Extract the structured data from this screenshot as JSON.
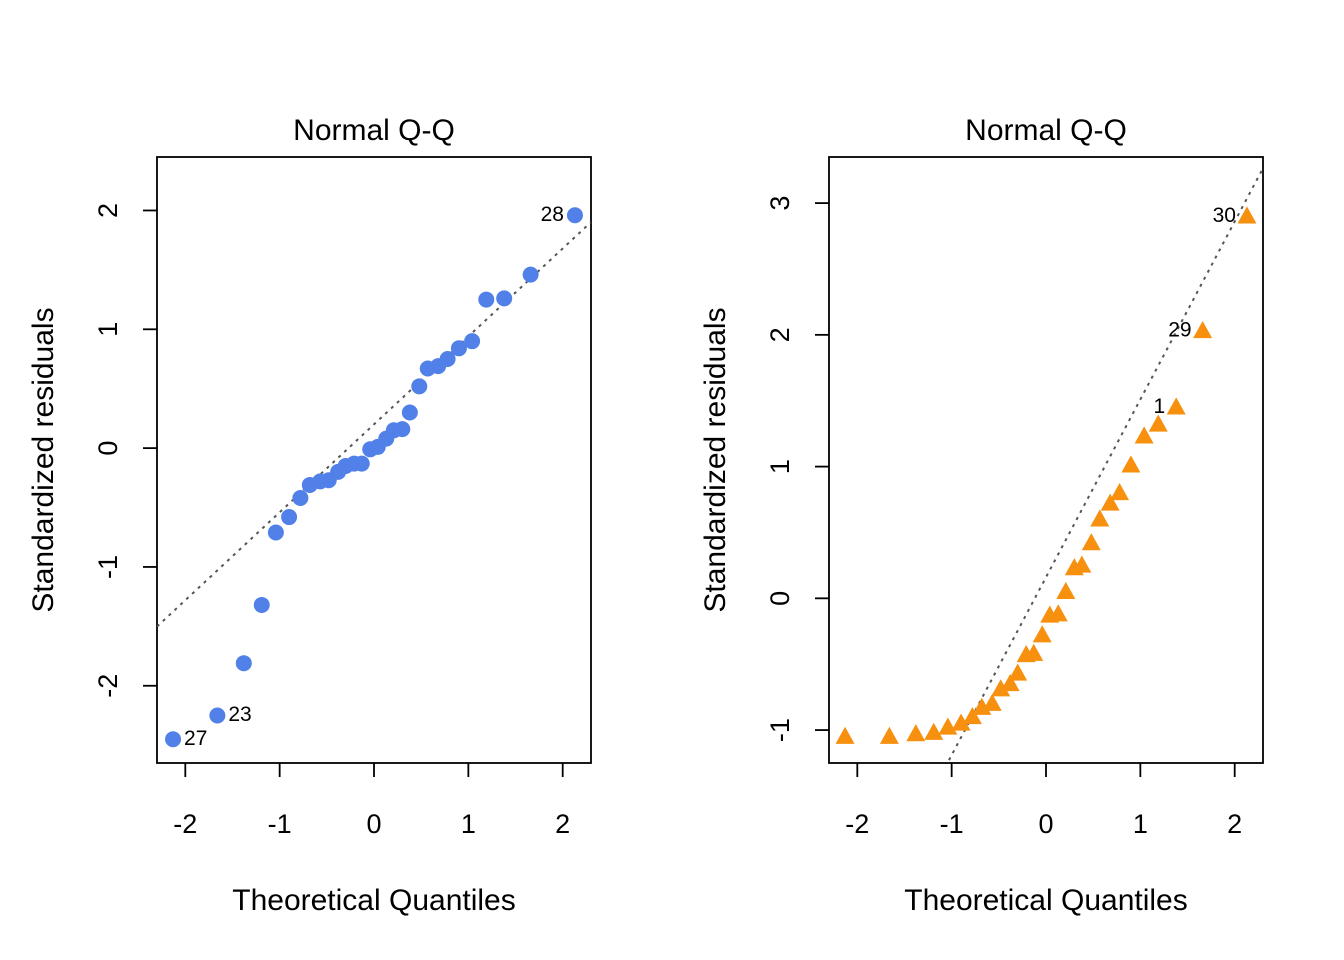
{
  "colors": {
    "left_points": "#5080E8",
    "right_points": "#F7900E",
    "ref_line": "#555555"
  },
  "chart_data": [
    {
      "type": "scatter",
      "marker": "circle",
      "title": "Normal Q-Q",
      "xlabel": "Theoretical Quantiles",
      "ylabel": "Standardized residuals",
      "xlim": [
        -2.3,
        2.3
      ],
      "ylim": [
        -2.65,
        2.45
      ],
      "xticks": [
        -2,
        -1,
        0,
        1,
        2
      ],
      "xtick_labels": [
        "-2",
        "-1",
        "0",
        "1",
        "2"
      ],
      "yticks": [
        -2,
        -1,
        0,
        1,
        2
      ],
      "ytick_labels": [
        "-2",
        "-1",
        "0",
        "1",
        "2"
      ],
      "reference_line": {
        "intercept": 0.2,
        "slope": 0.74
      },
      "grid": false,
      "points": [
        {
          "x": -2.13,
          "y": -2.45,
          "label": "27"
        },
        {
          "x": -1.66,
          "y": -2.25,
          "label": "23"
        },
        {
          "x": -1.38,
          "y": -1.81
        },
        {
          "x": -1.19,
          "y": -1.32
        },
        {
          "x": -1.04,
          "y": -0.71
        },
        {
          "x": -0.9,
          "y": -0.58
        },
        {
          "x": -0.78,
          "y": -0.42
        },
        {
          "x": -0.68,
          "y": -0.31
        },
        {
          "x": -0.57,
          "y": -0.28
        },
        {
          "x": -0.48,
          "y": -0.27
        },
        {
          "x": -0.38,
          "y": -0.2
        },
        {
          "x": -0.3,
          "y": -0.15
        },
        {
          "x": -0.21,
          "y": -0.13
        },
        {
          "x": -0.13,
          "y": -0.13
        },
        {
          "x": -0.04,
          "y": -0.01
        },
        {
          "x": 0.04,
          "y": 0.01
        },
        {
          "x": 0.13,
          "y": 0.08
        },
        {
          "x": 0.21,
          "y": 0.15
        },
        {
          "x": 0.3,
          "y": 0.16
        },
        {
          "x": 0.38,
          "y": 0.3
        },
        {
          "x": 0.48,
          "y": 0.52
        },
        {
          "x": 0.57,
          "y": 0.67
        },
        {
          "x": 0.68,
          "y": 0.69
        },
        {
          "x": 0.78,
          "y": 0.75
        },
        {
          "x": 0.9,
          "y": 0.84
        },
        {
          "x": 1.04,
          "y": 0.9
        },
        {
          "x": 1.19,
          "y": 1.25
        },
        {
          "x": 1.38,
          "y": 1.26
        },
        {
          "x": 1.66,
          "y": 1.46
        },
        {
          "x": 2.13,
          "y": 1.96,
          "label": "28"
        }
      ]
    },
    {
      "type": "scatter",
      "marker": "triangle",
      "title": "Normal Q-Q",
      "xlabel": "Theoretical Quantiles",
      "ylabel": "Standardized residuals",
      "xlim": [
        -2.3,
        2.3
      ],
      "ylim": [
        -1.25,
        3.35
      ],
      "xticks": [
        -2,
        -1,
        0,
        1,
        2
      ],
      "xtick_labels": [
        "-2",
        "-1",
        "0",
        "1",
        "2"
      ],
      "yticks": [
        -1,
        0,
        1,
        2,
        3
      ],
      "ytick_labels": [
        "-1",
        "0",
        "1",
        "2",
        "3"
      ],
      "reference_line": {
        "intercept": 0.16,
        "slope": 1.35
      },
      "grid": false,
      "points": [
        {
          "x": -2.13,
          "y": -1.05
        },
        {
          "x": -1.66,
          "y": -1.05
        },
        {
          "x": -1.38,
          "y": -1.03
        },
        {
          "x": -1.19,
          "y": -1.02
        },
        {
          "x": -1.04,
          "y": -0.98
        },
        {
          "x": -0.9,
          "y": -0.95
        },
        {
          "x": -0.78,
          "y": -0.9
        },
        {
          "x": -0.68,
          "y": -0.83
        },
        {
          "x": -0.57,
          "y": -0.8
        },
        {
          "x": -0.48,
          "y": -0.69
        },
        {
          "x": -0.38,
          "y": -0.65
        },
        {
          "x": -0.3,
          "y": -0.57
        },
        {
          "x": -0.21,
          "y": -0.43
        },
        {
          "x": -0.13,
          "y": -0.42
        },
        {
          "x": -0.04,
          "y": -0.28
        },
        {
          "x": 0.04,
          "y": -0.13
        },
        {
          "x": 0.13,
          "y": -0.12
        },
        {
          "x": 0.21,
          "y": 0.05
        },
        {
          "x": 0.3,
          "y": 0.23
        },
        {
          "x": 0.38,
          "y": 0.25
        },
        {
          "x": 0.48,
          "y": 0.42
        },
        {
          "x": 0.57,
          "y": 0.6
        },
        {
          "x": 0.68,
          "y": 0.72
        },
        {
          "x": 0.78,
          "y": 0.8
        },
        {
          "x": 0.9,
          "y": 1.01
        },
        {
          "x": 1.04,
          "y": 1.23
        },
        {
          "x": 1.19,
          "y": 1.32
        },
        {
          "x": 1.38,
          "y": 1.45,
          "label": "1"
        },
        {
          "x": 1.66,
          "y": 2.03,
          "label": "29"
        },
        {
          "x": 2.13,
          "y": 2.9,
          "label": "30"
        }
      ]
    }
  ]
}
